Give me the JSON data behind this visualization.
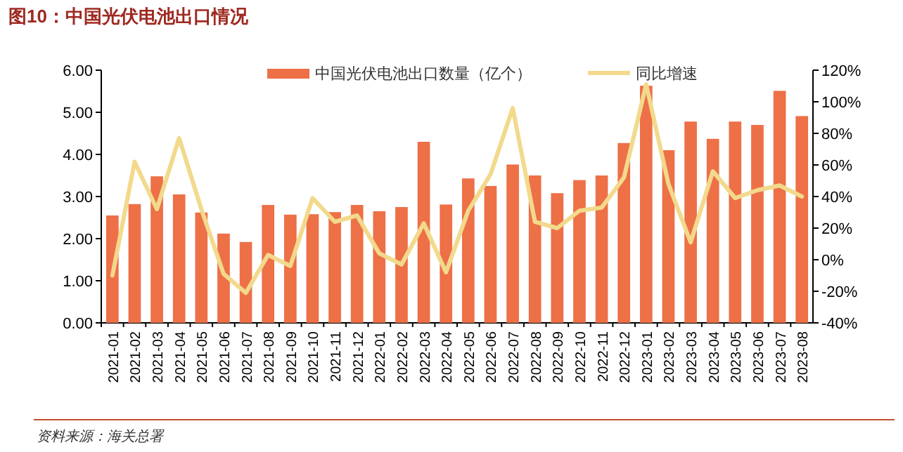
{
  "chart_data": {
    "type": "bar",
    "title": "图10：中国光伏电池出口情况",
    "categories": [
      "2021-01",
      "2021-02",
      "2021-03",
      "2021-04",
      "2021-05",
      "2021-06",
      "2021-07",
      "2021-08",
      "2021-09",
      "2021-10",
      "2021-11",
      "2021-12",
      "2022-01",
      "2022-02",
      "2022-03",
      "2022-04",
      "2022-05",
      "2022-06",
      "2022-07",
      "2022-08",
      "2022-09",
      "2022-10",
      "2022-11",
      "2022-12",
      "2023-01",
      "2023-02",
      "2023-03",
      "2023-04",
      "2023-05",
      "2023-06",
      "2023-07",
      "2023-08"
    ],
    "series": [
      {
        "name": "中国光伏电池出口数量（亿个）",
        "color": "#ed7047",
        "values": [
          2.55,
          2.82,
          3.48,
          3.05,
          2.62,
          2.12,
          1.92,
          2.8,
          2.57,
          2.58,
          2.63,
          2.8,
          2.65,
          2.75,
          4.3,
          2.81,
          3.43,
          3.25,
          3.76,
          3.5,
          3.08,
          3.39,
          3.5,
          4.27,
          5.63,
          4.1,
          4.78,
          4.37,
          4.78,
          4.7,
          5.51,
          4.91
        ]
      },
      {
        "name": "同比增速",
        "type": "line",
        "axis": "y2",
        "color": "#f2d98c",
        "values": [
          -10,
          62,
          32,
          77,
          32,
          -9,
          -21,
          3,
          -4,
          39,
          24,
          28,
          4,
          -3,
          23,
          -8,
          31,
          54,
          96,
          24,
          20,
          31,
          33,
          52,
          111,
          48,
          11,
          56,
          39,
          44,
          47,
          40
        ]
      }
    ],
    "ylim": [
      0,
      6
    ],
    "yticks": [
      {
        "value": 0,
        "label": "0.00"
      },
      {
        "value": 1,
        "label": "1.00"
      },
      {
        "value": 2,
        "label": "2.00"
      },
      {
        "value": 3,
        "label": "3.00"
      },
      {
        "value": 4,
        "label": "4.00"
      },
      {
        "value": 5,
        "label": "5.00"
      },
      {
        "value": 6,
        "label": "6.00"
      }
    ],
    "y2lim": [
      -40,
      120
    ],
    "y2ticks": [
      {
        "value": -40,
        "label": "-40%"
      },
      {
        "value": -20,
        "label": "-20%"
      },
      {
        "value": 0,
        "label": "0%"
      },
      {
        "value": 20,
        "label": "20%"
      },
      {
        "value": 40,
        "label": "40%"
      },
      {
        "value": 60,
        "label": "60%"
      },
      {
        "value": 80,
        "label": "80%"
      },
      {
        "value": 100,
        "label": "100%"
      },
      {
        "value": 120,
        "label": "120%"
      }
    ],
    "legend": "top",
    "annotations": [
      "资料来源：海关总署"
    ]
  }
}
